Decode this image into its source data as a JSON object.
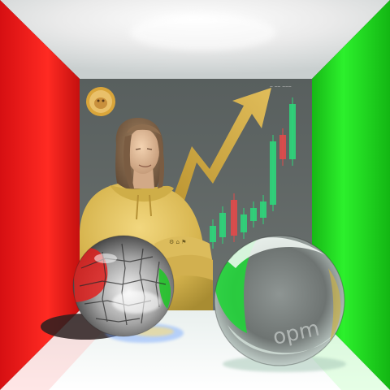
{
  "scene": {
    "description_free": true,
    "walls": {
      "left_color": "#e8181a",
      "right_color": "#19d21b",
      "back_color": "#5f6563",
      "ceiling_color": "#f2f2f2",
      "floor_color": "#f7f7f7"
    },
    "poster": {
      "coin_icon": "doge-coin-icon",
      "chart_icon": "candlestick-chart-icon",
      "arrow_icon": "trend-up-arrow-icon",
      "accent_color": "#e0b43a",
      "candle_up_color": "#2ed67a",
      "candle_down_color": "#e04a4a"
    },
    "spheres": {
      "left": "mirror-sphere",
      "right": "glass-sphere",
      "right_sphere_text": "opm"
    }
  }
}
